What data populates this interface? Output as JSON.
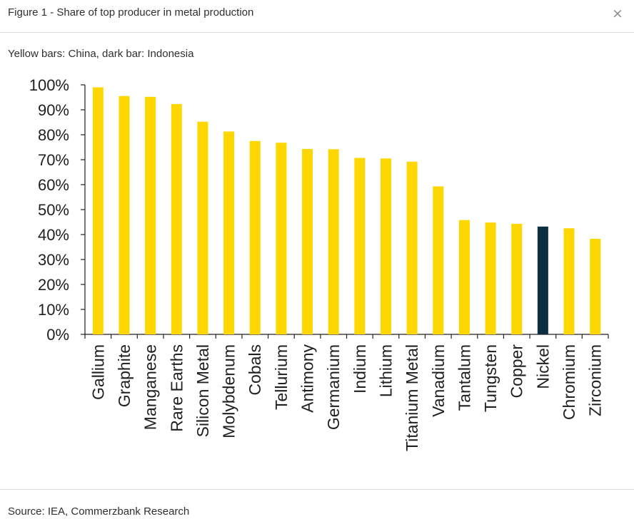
{
  "header": {
    "title": "Figure 1 - Share of top producer in metal production",
    "close_icon": "×"
  },
  "subtitle": "Yellow bars: China, dark bar: Indonesia",
  "footer": {
    "source": "Source: IEA, Commerzbank Research"
  },
  "colors": {
    "china": "#FFD700",
    "indonesia": "#0B2E40",
    "axis": "#222222"
  },
  "chart_data": {
    "type": "bar",
    "categories": [
      "Gallium",
      "Graphite",
      "Manganese",
      "Rare Earths",
      "Silicon Metal",
      "Molybdenum",
      "Cobals",
      "Tellurium",
      "Antimony",
      "Germanium",
      "Indium",
      "Lithium",
      "Titanium Metal",
      "Vanadium",
      "Tantalum",
      "Tungsten",
      "Copper",
      "Nickel",
      "Chromium",
      "Zirconium"
    ],
    "values": [
      99,
      95.5,
      95.2,
      92.3,
      85.2,
      81.3,
      77.5,
      76.8,
      74.3,
      74.2,
      70.7,
      70.5,
      69.2,
      59.3,
      45.8,
      44.8,
      44.3,
      43.2,
      42.5,
      38.3
    ],
    "producer": [
      "China",
      "China",
      "China",
      "China",
      "China",
      "China",
      "China",
      "China",
      "China",
      "China",
      "China",
      "China",
      "China",
      "China",
      "China",
      "China",
      "China",
      "Indonesia",
      "China",
      "China"
    ],
    "yticks": [
      "0%",
      "10%",
      "20%",
      "30%",
      "40%",
      "50%",
      "60%",
      "70%",
      "80%",
      "90%",
      "100%"
    ],
    "ylim": [
      0,
      100
    ],
    "grid": false,
    "legend": "none"
  }
}
